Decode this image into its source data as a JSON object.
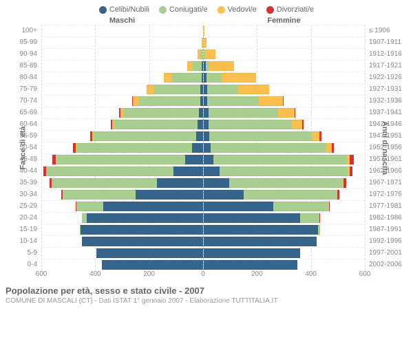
{
  "legend": [
    {
      "label": "Celibi/Nubili",
      "color": "#36648b"
    },
    {
      "label": "Coniugati/e",
      "color": "#a8cf8f"
    },
    {
      "label": "Vedovi/e",
      "color": "#fabf4d"
    },
    {
      "label": "Divorziati/e",
      "color": "#d93030"
    }
  ],
  "headers": {
    "male": "Maschi",
    "female": "Femmine"
  },
  "y_left_title": "Fasce di età",
  "y_right_title": "Anni di nascita",
  "title": "Popolazione per età, sesso e stato civile - 2007",
  "subtitle": "COMUNE DI MASCALI (CT) - Dati ISTAT 1° gennaio 2007 - Elaborazione TUTTITALIA.IT",
  "xmax": 600,
  "xticks": [
    600,
    400,
    200,
    0,
    200,
    400,
    600
  ],
  "colors": {
    "celibi": "#36648b",
    "coniugati": "#a8cf8f",
    "vedovi": "#fabf4d",
    "divorziati": "#d93030",
    "grid": "#dddddd",
    "axis_dash": "#aaaaaa",
    "row_dash": "#eeeeee",
    "text": "#888888",
    "title_text": "#666666"
  },
  "rows": [
    {
      "age": "100+",
      "year": "≤ 1906",
      "m": {
        "c": 0,
        "co": 0,
        "v": 0,
        "d": 0
      },
      "f": {
        "c": 0,
        "co": 0,
        "v": 5,
        "d": 0
      }
    },
    {
      "age": "95-99",
      "year": "1907-1911",
      "m": {
        "c": 0,
        "co": 0,
        "v": 3,
        "d": 0
      },
      "f": {
        "c": 0,
        "co": 0,
        "v": 12,
        "d": 0
      }
    },
    {
      "age": "90-94",
      "year": "1912-1916",
      "m": {
        "c": 0,
        "co": 8,
        "v": 10,
        "d": 0
      },
      "f": {
        "c": 2,
        "co": 3,
        "v": 40,
        "d": 0
      }
    },
    {
      "age": "85-89",
      "year": "1917-1921",
      "m": {
        "c": 3,
        "co": 35,
        "v": 20,
        "d": 0
      },
      "f": {
        "c": 8,
        "co": 15,
        "v": 90,
        "d": 0
      }
    },
    {
      "age": "80-84",
      "year": "1922-1926",
      "m": {
        "c": 5,
        "co": 110,
        "v": 30,
        "d": 0
      },
      "f": {
        "c": 12,
        "co": 55,
        "v": 130,
        "d": 0
      }
    },
    {
      "age": "75-79",
      "year": "1927-1931",
      "m": {
        "c": 8,
        "co": 175,
        "v": 25,
        "d": 0
      },
      "f": {
        "c": 15,
        "co": 115,
        "v": 115,
        "d": 0
      }
    },
    {
      "age": "70-74",
      "year": "1932-1936",
      "m": {
        "c": 10,
        "co": 230,
        "v": 20,
        "d": 3
      },
      "f": {
        "c": 15,
        "co": 190,
        "v": 90,
        "d": 2
      }
    },
    {
      "age": "65-69",
      "year": "1937-1941",
      "m": {
        "c": 15,
        "co": 280,
        "v": 12,
        "d": 5
      },
      "f": {
        "c": 18,
        "co": 260,
        "v": 60,
        "d": 3
      }
    },
    {
      "age": "60-64",
      "year": "1942-1946",
      "m": {
        "c": 18,
        "co": 310,
        "v": 8,
        "d": 6
      },
      "f": {
        "c": 18,
        "co": 310,
        "v": 40,
        "d": 5
      }
    },
    {
      "age": "55-59",
      "year": "1947-1951",
      "m": {
        "c": 25,
        "co": 380,
        "v": 5,
        "d": 8
      },
      "f": {
        "c": 22,
        "co": 380,
        "v": 28,
        "d": 8
      }
    },
    {
      "age": "50-54",
      "year": "1952-1956",
      "m": {
        "c": 40,
        "co": 430,
        "v": 3,
        "d": 10
      },
      "f": {
        "c": 28,
        "co": 430,
        "v": 18,
        "d": 10
      }
    },
    {
      "age": "45-49",
      "year": "1957-1961",
      "m": {
        "c": 65,
        "co": 480,
        "v": 2,
        "d": 12
      },
      "f": {
        "c": 38,
        "co": 495,
        "v": 12,
        "d": 15
      }
    },
    {
      "age": "40-44",
      "year": "1962-1966",
      "m": {
        "c": 110,
        "co": 470,
        "v": 2,
        "d": 10
      },
      "f": {
        "c": 60,
        "co": 475,
        "v": 8,
        "d": 12
      }
    },
    {
      "age": "35-39",
      "year": "1967-1971",
      "m": {
        "c": 170,
        "co": 390,
        "v": 1,
        "d": 8
      },
      "f": {
        "c": 95,
        "co": 420,
        "v": 5,
        "d": 10
      }
    },
    {
      "age": "30-34",
      "year": "1972-1976",
      "m": {
        "c": 250,
        "co": 270,
        "v": 0,
        "d": 5
      },
      "f": {
        "c": 150,
        "co": 345,
        "v": 3,
        "d": 8
      }
    },
    {
      "age": "25-29",
      "year": "1977-1981",
      "m": {
        "c": 370,
        "co": 100,
        "v": 0,
        "d": 2
      },
      "f": {
        "c": 260,
        "co": 205,
        "v": 1,
        "d": 3
      }
    },
    {
      "age": "20-24",
      "year": "1982-1986",
      "m": {
        "c": 430,
        "co": 18,
        "v": 0,
        "d": 0
      },
      "f": {
        "c": 360,
        "co": 70,
        "v": 0,
        "d": 1
      }
    },
    {
      "age": "15-19",
      "year": "1987-1991",
      "m": {
        "c": 455,
        "co": 1,
        "v": 0,
        "d": 0
      },
      "f": {
        "c": 425,
        "co": 8,
        "v": 0,
        "d": 0
      }
    },
    {
      "age": "10-14",
      "year": "1992-1996",
      "m": {
        "c": 450,
        "co": 0,
        "v": 0,
        "d": 0
      },
      "f": {
        "c": 420,
        "co": 0,
        "v": 0,
        "d": 0
      }
    },
    {
      "age": "5-9",
      "year": "1997-2001",
      "m": {
        "c": 395,
        "co": 0,
        "v": 0,
        "d": 0
      },
      "f": {
        "c": 360,
        "co": 0,
        "v": 0,
        "d": 0
      }
    },
    {
      "age": "0-4",
      "year": "2002-2006",
      "m": {
        "c": 375,
        "co": 0,
        "v": 0,
        "d": 0
      },
      "f": {
        "c": 350,
        "co": 0,
        "v": 0,
        "d": 0
      }
    }
  ]
}
